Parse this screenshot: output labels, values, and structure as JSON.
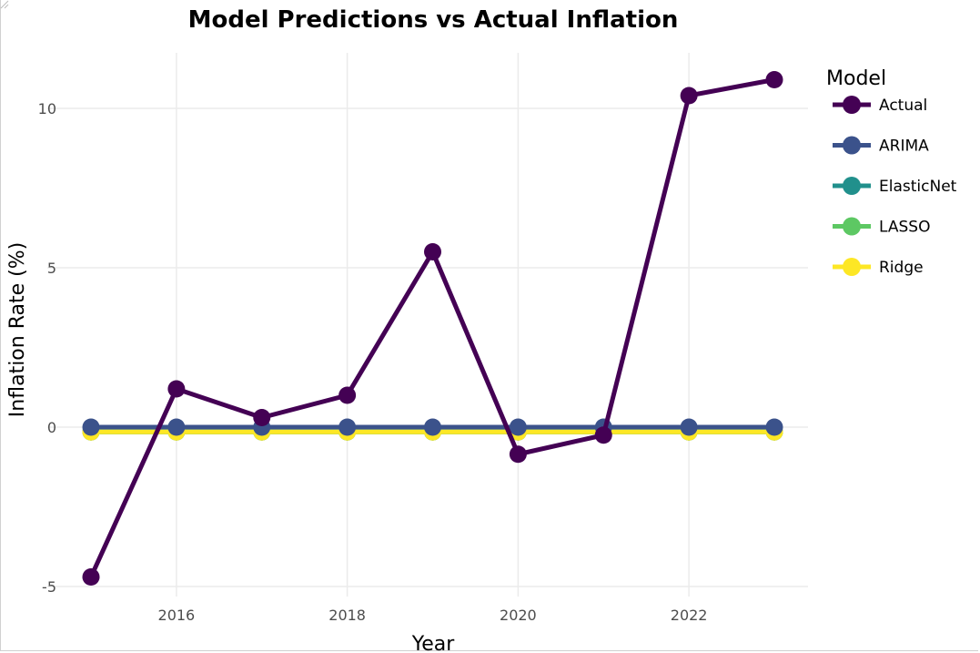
{
  "chart_data": {
    "type": "line",
    "title": "Model Predictions vs Actual Inflation",
    "xlabel": "Year",
    "ylabel": "Inflation Rate (%)",
    "x": [
      2015,
      2016,
      2017,
      2018,
      2019,
      2020,
      2021,
      2022,
      2023
    ],
    "xlim": [
      2015,
      2023
    ],
    "ylim": [
      -5,
      11
    ],
    "x_ticks": [
      2016,
      2018,
      2020,
      2022
    ],
    "y_ticks": [
      -5,
      0,
      5,
      10
    ],
    "x_tick_labels": [
      "2016",
      "2018",
      "2020",
      "2022"
    ],
    "y_tick_labels": [
      "-5",
      "0",
      "5",
      "10"
    ],
    "grid": true,
    "legend": {
      "title": "Model",
      "position": "right"
    },
    "series": [
      {
        "name": "Actual",
        "color": "#440154",
        "values": [
          -4.7,
          1.2,
          0.3,
          1.0,
          5.5,
          -0.85,
          -0.25,
          10.4,
          10.9
        ]
      },
      {
        "name": "ARIMA",
        "color": "#3B528B",
        "values": [
          0.0,
          0.0,
          0.0,
          0.0,
          0.0,
          0.0,
          0.0,
          0.0,
          0.0
        ]
      },
      {
        "name": "ElasticNet",
        "color": "#21908C",
        "values": [
          -0.15,
          -0.15,
          -0.15,
          -0.15,
          -0.15,
          -0.15,
          -0.15,
          -0.15,
          -0.15
        ]
      },
      {
        "name": "LASSO",
        "color": "#5DC863",
        "values": [
          -0.15,
          -0.15,
          -0.15,
          -0.15,
          -0.15,
          -0.15,
          -0.15,
          -0.15,
          -0.15
        ]
      },
      {
        "name": "Ridge",
        "color": "#FDE725",
        "values": [
          -0.15,
          -0.15,
          -0.15,
          -0.15,
          -0.15,
          -0.15,
          -0.15,
          -0.15,
          -0.15
        ]
      }
    ]
  }
}
